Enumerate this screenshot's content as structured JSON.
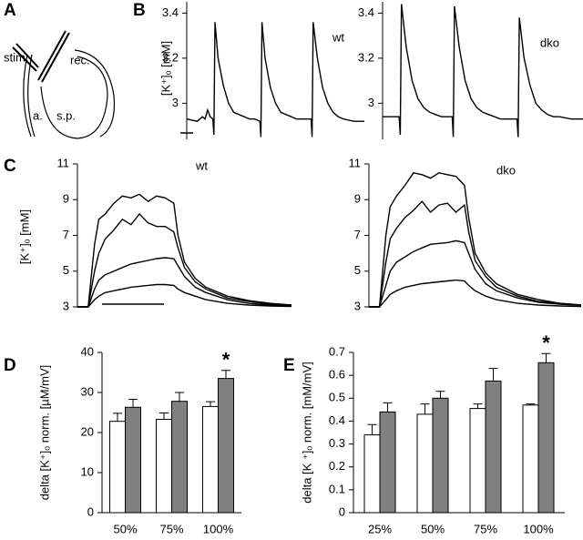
{
  "panel_labels": [
    "A",
    "B",
    "C",
    "D",
    "E"
  ],
  "diagram": {
    "labels": [
      "stim.",
      "rec.",
      "a.",
      "s.p."
    ]
  },
  "chart_data": [
    {
      "type": "line",
      "ylabel": "[K⁺]ₒ [mM]",
      "annotation": "wt",
      "xlim": [
        0,
        34
      ],
      "ylim": [
        2.84,
        3.45
      ],
      "yticks": [
        3,
        3.2,
        3.4
      ],
      "x": [
        0,
        2,
        3,
        3.5,
        4,
        4.5,
        5,
        5.2,
        5.4,
        6,
        7,
        8,
        9,
        10,
        11,
        12,
        13,
        14,
        14.2,
        14.4,
        15,
        16,
        17,
        18,
        19,
        20,
        21,
        22,
        23.8,
        24,
        24.2,
        25,
        26,
        27,
        28,
        29,
        30,
        32,
        34
      ],
      "series": [
        {
          "color": "#000000",
          "values": [
            2.93,
            2.92,
            2.94,
            2.93,
            2.97,
            2.94,
            2.93,
            2.86,
            3.36,
            3.2,
            3.08,
            3.0,
            2.96,
            2.95,
            2.94,
            2.93,
            2.93,
            2.92,
            2.85,
            3.36,
            3.2,
            3.07,
            3.0,
            2.96,
            2.95,
            2.94,
            2.93,
            2.93,
            2.93,
            2.85,
            3.36,
            3.2,
            3.07,
            3.0,
            2.96,
            2.94,
            2.93,
            2.92,
            2.92
          ]
        }
      ]
    },
    {
      "type": "line",
      "annotation": "dko",
      "xlim": [
        0,
        34
      ],
      "ylim": [
        2.84,
        3.45
      ],
      "yticks": [
        3,
        3.2,
        3.4
      ],
      "x": [
        0,
        2.8,
        3,
        3.2,
        4,
        5,
        6,
        7,
        8,
        9,
        10,
        11,
        11.8,
        12,
        12.2,
        13,
        14,
        15,
        16,
        17,
        18,
        19,
        20,
        21,
        22.8,
        23,
        23.2,
        24,
        25,
        26,
        27,
        28,
        29,
        30,
        32,
        34
      ],
      "series": [
        {
          "color": "#000000",
          "values": [
            2.94,
            2.94,
            2.86,
            3.44,
            3.25,
            3.1,
            3.02,
            2.98,
            2.96,
            2.95,
            2.94,
            2.94,
            2.94,
            2.85,
            3.43,
            3.25,
            3.1,
            3.02,
            2.98,
            2.96,
            2.95,
            2.94,
            2.93,
            2.93,
            2.93,
            2.85,
            3.38,
            3.2,
            3.08,
            3.0,
            2.97,
            2.95,
            2.94,
            2.94,
            2.93,
            2.93
          ]
        }
      ]
    },
    {
      "type": "line",
      "ylabel": "[K⁺]ₒ [mM]",
      "annotation": "wt",
      "xlim": [
        0,
        100
      ],
      "ylim": [
        3,
        11
      ],
      "yticks": [
        3,
        5,
        7,
        9,
        11
      ],
      "x": [
        0,
        5,
        8,
        10,
        13,
        17,
        21,
        25,
        29,
        33,
        37,
        41,
        45,
        47,
        50,
        55,
        60,
        70,
        80,
        90,
        100
      ],
      "series": [
        {
          "color": "#000000",
          "values": [
            3,
            3,
            6.5,
            7.9,
            8.2,
            8.8,
            9.2,
            9.1,
            9.3,
            8.9,
            9.2,
            9.1,
            8.8,
            7,
            5.5,
            4.6,
            4.1,
            3.6,
            3.35,
            3.2,
            3.1
          ]
        },
        {
          "color": "#000000",
          "values": [
            3,
            3,
            5,
            6,
            6.8,
            7.3,
            7.9,
            7.6,
            8.2,
            7.7,
            7.5,
            7.5,
            7.2,
            6.3,
            5.2,
            4.4,
            4.0,
            3.5,
            3.3,
            3.15,
            3.1
          ]
        },
        {
          "color": "#000000",
          "values": [
            3,
            3,
            4,
            4.5,
            4.8,
            5.0,
            5.2,
            5.4,
            5.5,
            5.6,
            5.7,
            5.75,
            5.7,
            5.3,
            4.7,
            4.1,
            3.8,
            3.4,
            3.2,
            3.1,
            3.05
          ]
        },
        {
          "color": "#000000",
          "values": [
            3,
            3,
            3.4,
            3.6,
            3.8,
            3.9,
            4.0,
            4.1,
            4.15,
            4.2,
            4.25,
            4.25,
            4.2,
            4.0,
            3.8,
            3.6,
            3.4,
            3.2,
            3.1,
            3.05,
            3.02
          ]
        }
      ]
    },
    {
      "type": "line",
      "annotation": "dko",
      "xlim": [
        0,
        100
      ],
      "ylim": [
        3,
        11
      ],
      "yticks": [
        3,
        5,
        7,
        9,
        11
      ],
      "x": [
        0,
        5,
        8,
        10,
        13,
        17,
        21,
        25,
        29,
        33,
        37,
        41,
        45,
        47,
        50,
        55,
        60,
        70,
        80,
        90,
        100
      ],
      "series": [
        {
          "color": "#000000",
          "values": [
            3,
            3,
            7,
            8.6,
            9.2,
            9.8,
            10.5,
            10.4,
            10.2,
            10.5,
            10.4,
            10.3,
            9.8,
            8,
            6,
            4.9,
            4.3,
            3.7,
            3.4,
            3.2,
            3.1
          ]
        },
        {
          "color": "#000000",
          "values": [
            3,
            3,
            5.5,
            6.8,
            7.4,
            8.0,
            8.4,
            8.9,
            8.3,
            8.7,
            8.8,
            8.3,
            8.7,
            7.2,
            5.6,
            4.7,
            4.1,
            3.6,
            3.3,
            3.2,
            3.1
          ]
        },
        {
          "color": "#000000",
          "values": [
            3,
            3,
            4.2,
            5.0,
            5.5,
            5.8,
            6.1,
            6.3,
            6.5,
            6.55,
            6.6,
            6.7,
            6.6,
            6.0,
            5.1,
            4.3,
            3.9,
            3.5,
            3.25,
            3.15,
            3.08
          ]
        },
        {
          "color": "#000000",
          "values": [
            3,
            3,
            3.4,
            3.7,
            3.9,
            4.1,
            4.2,
            4.3,
            4.35,
            4.4,
            4.45,
            4.5,
            4.45,
            4.2,
            3.9,
            3.6,
            3.4,
            3.2,
            3.1,
            3.05,
            3.02
          ]
        }
      ]
    },
    {
      "type": "bar",
      "ylabel": "delta [K⁺]ₒ norm. [µM/mV]",
      "annotation": "*",
      "categories": [
        "50%",
        "75%",
        "100%"
      ],
      "ylim": [
        0,
        40
      ],
      "yticks": [
        0,
        10,
        20,
        30,
        40
      ],
      "series": [
        {
          "color": "#ffffff",
          "values": [
            22.8,
            23.3,
            26.5
          ],
          "errors": [
            2,
            1.6,
            1.2
          ]
        },
        {
          "color": "#808080",
          "values": [
            26.3,
            27.8,
            33.5
          ],
          "errors": [
            2,
            2.2,
            2
          ]
        }
      ]
    },
    {
      "type": "bar",
      "ylabel": "delta [K ⁺]ₒ norm. [mM/mV]",
      "annotation": "*",
      "categories": [
        "25%",
        "50%",
        "75%",
        "100%"
      ],
      "ylim": [
        0,
        0.7
      ],
      "yticks": [
        0,
        0.1,
        0.2,
        0.3,
        0.4,
        0.5,
        0.6,
        0.7
      ],
      "series": [
        {
          "color": "#ffffff",
          "values": [
            0.34,
            0.43,
            0.455,
            0.47
          ],
          "errors": [
            0.045,
            0.045,
            0.02,
            0.005
          ]
        },
        {
          "color": "#808080",
          "values": [
            0.44,
            0.5,
            0.575,
            0.655
          ],
          "errors": [
            0.04,
            0.03,
            0.055,
            0.04
          ]
        }
      ]
    }
  ]
}
